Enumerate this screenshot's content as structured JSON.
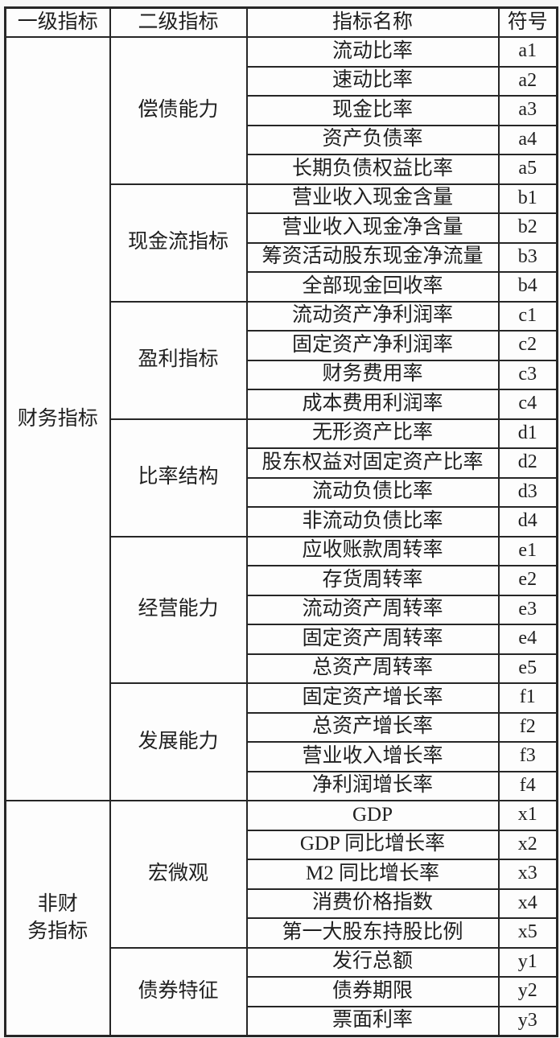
{
  "table": {
    "headers": [
      "一级指标",
      "二级指标",
      "指标名称",
      "符号"
    ],
    "groups": [
      {
        "level1": "财务指标",
        "subgroups": [
          {
            "level2": "偿债能力",
            "indicators": [
              {
                "name": "流动比率",
                "symbol": "a1"
              },
              {
                "name": "速动比率",
                "symbol": "a2"
              },
              {
                "name": "现金比率",
                "symbol": "a3"
              },
              {
                "name": "资产负债率",
                "symbol": "a4"
              },
              {
                "name": "长期负债权益比率",
                "symbol": "a5"
              }
            ]
          },
          {
            "level2": "现金流指标",
            "indicators": [
              {
                "name": "营业收入现金含量",
                "symbol": "b1"
              },
              {
                "name": "营业收入现金净含量",
                "symbol": "b2"
              },
              {
                "name": "筹资活动股东现金净流量",
                "symbol": "b3"
              },
              {
                "name": "全部现金回收率",
                "symbol": "b4"
              }
            ]
          },
          {
            "level2": "盈利指标",
            "indicators": [
              {
                "name": "流动资产净利润率",
                "symbol": "c1"
              },
              {
                "name": "固定资产净利润率",
                "symbol": "c2"
              },
              {
                "name": "财务费用率",
                "symbol": "c3"
              },
              {
                "name": "成本费用利润率",
                "symbol": "c4"
              }
            ]
          },
          {
            "level2": "比率结构",
            "indicators": [
              {
                "name": "无形资产比率",
                "symbol": "d1"
              },
              {
                "name": "股东权益对固定资产比率",
                "symbol": "d2"
              },
              {
                "name": "流动负债比率",
                "symbol": "d3"
              },
              {
                "name": "非流动负债比率",
                "symbol": "d4"
              }
            ]
          },
          {
            "level2": "经营能力",
            "indicators": [
              {
                "name": "应收账款周转率",
                "symbol": "e1"
              },
              {
                "name": "存货周转率",
                "symbol": "e2"
              },
              {
                "name": "流动资产周转率",
                "symbol": "e3"
              },
              {
                "name": "固定资产周转率",
                "symbol": "e4"
              },
              {
                "name": "总资产周转率",
                "symbol": "e5"
              }
            ]
          },
          {
            "level2": "发展能力",
            "indicators": [
              {
                "name": "固定资产增长率",
                "symbol": "f1"
              },
              {
                "name": "总资产增长率",
                "symbol": "f2"
              },
              {
                "name": "营业收入增长率",
                "symbol": "f3"
              },
              {
                "name": "净利润增长率",
                "symbol": "f4"
              }
            ]
          }
        ]
      },
      {
        "level1": "非财务指标",
        "subgroups": [
          {
            "level2": "宏微观",
            "indicators": [
              {
                "name": "GDP",
                "symbol": "x1"
              },
              {
                "name": "GDP 同比增长率",
                "symbol": "x2"
              },
              {
                "name": "M2 同比增长率",
                "symbol": "x3"
              },
              {
                "name": "消费价格指数",
                "symbol": "x4"
              },
              {
                "name": "第一大股东持股比例",
                "symbol": "x5"
              }
            ]
          },
          {
            "level2": "债券特征",
            "indicators": [
              {
                "name": "发行总额",
                "symbol": "y1"
              },
              {
                "name": "债券期限",
                "symbol": "y2"
              },
              {
                "name": "票面利率",
                "symbol": "y3"
              }
            ]
          }
        ]
      }
    ]
  },
  "colors": {
    "border": "#262626",
    "text": "#1f1f1f",
    "table_background": "#fdfdfd",
    "page_background": "#f7f7f7"
  }
}
